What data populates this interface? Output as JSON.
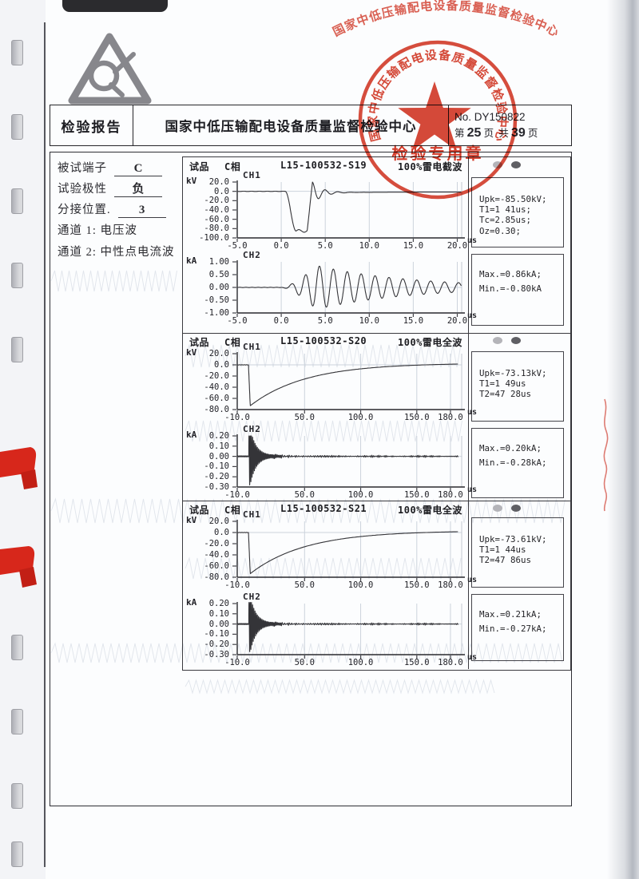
{
  "header": {
    "report_type": "检验报告",
    "center_title": "国家中低压输配电设备质量监督检验中心",
    "doc_no": "No. DY150822",
    "page_prefix": "第",
    "page_number": "25",
    "page_unit": "页",
    "total_prefix": "共",
    "total_number": "39",
    "total_unit": "页"
  },
  "stamp": {
    "ring_text": "国家中低压输配电设备质量监督检验中心",
    "label": "检验专用章",
    "color": "#d43a28"
  },
  "specimen": {
    "rows": [
      {
        "label": "被试端子",
        "value": "C"
      },
      {
        "label": "试验极性",
        "value": "负"
      },
      {
        "label": "分接位置.",
        "value": "3"
      }
    ],
    "channel1": "通道 1: 电压波",
    "channel2": "通道 2: 中性点电流波"
  },
  "records": [
    {
      "specimen_label": "试品",
      "phase": "C相",
      "code": "L15-100532-S19",
      "wave_label": "100%雷电截波",
      "result_panel_voltage": [
        "Upk=-85.50kV;",
        "T1=1 41us;",
        "Tc=2.85us;",
        "Oz=0.30;"
      ],
      "result_panel_current": [
        "Max.=0.86kA;",
        "Min.=-0.80kA"
      ]
    },
    {
      "specimen_label": "试品",
      "phase": "C相",
      "code": "L15-100532-S20",
      "wave_label": "100%雷电全波",
      "result_panel_voltage": [
        "Upk=-73.13kV;",
        "T1=1 49us",
        "T2=47 28us"
      ],
      "result_panel_current": [
        "Max.=0.20kA;",
        "Min.=-0.28kA;"
      ]
    },
    {
      "specimen_label": "试品",
      "phase": "C相",
      "code": "L15-100532-S21",
      "wave_label": "100%雷电全波",
      "result_panel_voltage": [
        "Upk=-73.61kV;",
        "T1=1 44us",
        "T2=47 86us"
      ],
      "result_panel_current": [
        "Max.=0.21kA;",
        "Min.=-0.27kA;"
      ]
    }
  ],
  "chart_data": [
    {
      "record": 1,
      "channel": "CH1",
      "unit": "kV",
      "x_unit": "us",
      "type": "line",
      "waveform": "chopped_lightning_impulse",
      "x_range": [
        -5,
        20.5
      ],
      "x_ticks": [
        [
          -5,
          "-5.0"
        ],
        [
          0,
          "0.0"
        ],
        [
          5,
          "5.0"
        ],
        [
          10,
          "10.0"
        ],
        [
          15,
          "15.0"
        ],
        [
          20,
          "20.0"
        ]
      ],
      "y_range": [
        -100,
        20
      ],
      "y_ticks": [
        [
          20,
          "20.0"
        ],
        [
          0,
          "0.0"
        ],
        [
          -20,
          "-20.0"
        ],
        [
          -40,
          "-40.0"
        ],
        [
          -60,
          "-60.0"
        ],
        [
          -80,
          "-80.0"
        ],
        [
          -100,
          "-100.0"
        ]
      ],
      "key_values": {
        "Upk_kV": -85.5,
        "T1_us": 1.41,
        "Tc_us": 2.85,
        "Oz": 0.3
      }
    },
    {
      "record": 1,
      "channel": "CH2",
      "unit": "kA",
      "x_unit": "us",
      "type": "line",
      "waveform": "damped_oscillation",
      "x_range": [
        -5,
        20.5
      ],
      "x_ticks": [
        [
          -5,
          "-5.0"
        ],
        [
          0,
          "0.0"
        ],
        [
          5,
          "5.0"
        ],
        [
          10,
          "10.0"
        ],
        [
          15,
          "15.0"
        ],
        [
          20,
          "20.0"
        ]
      ],
      "y_range": [
        -1,
        1
      ],
      "y_ticks": [
        [
          1,
          "1.00"
        ],
        [
          0.5,
          "0.50"
        ],
        [
          0,
          "0.00"
        ],
        [
          -0.5,
          "-0.50"
        ],
        [
          -1,
          "-1.00"
        ]
      ],
      "key_values": {
        "Max_kA": 0.86,
        "Min_kA": -0.8
      }
    },
    {
      "record": 2,
      "channel": "CH1",
      "unit": "kV",
      "x_unit": "us",
      "type": "line",
      "waveform": "full_lightning_impulse",
      "x_range": [
        -10,
        190
      ],
      "x_ticks": [
        [
          -10,
          "-10.0"
        ],
        [
          50,
          "50.0"
        ],
        [
          100,
          "100.0"
        ],
        [
          150,
          "150.0"
        ],
        [
          180,
          "180.0"
        ]
      ],
      "y_range": [
        -80,
        20
      ],
      "y_ticks": [
        [
          20,
          "20.0"
        ],
        [
          0,
          "0.0"
        ],
        [
          -20,
          "-20.0"
        ],
        [
          -40,
          "-40.0"
        ],
        [
          -60,
          "-60.0"
        ],
        [
          -80,
          "-80.0"
        ]
      ],
      "key_values": {
        "Upk_kV": -73.13,
        "T1_us": 1.49,
        "T2_us": 47.28
      }
    },
    {
      "record": 2,
      "channel": "CH2",
      "unit": "kA",
      "x_unit": "us",
      "type": "line",
      "waveform": "hf_damped_oscillation",
      "x_range": [
        -10,
        190
      ],
      "x_ticks": [
        [
          -10,
          "-10.0"
        ],
        [
          50,
          "50.0"
        ],
        [
          100,
          "100.0"
        ],
        [
          150,
          "150.0"
        ],
        [
          180,
          "180.0"
        ]
      ],
      "y_range": [
        -0.3,
        0.2
      ],
      "y_ticks": [
        [
          0.2,
          "0.20"
        ],
        [
          0.1,
          "0.10"
        ],
        [
          0,
          "0.00"
        ],
        [
          -0.1,
          "-0.10"
        ],
        [
          -0.2,
          "-0.20"
        ],
        [
          -0.3,
          "-0.30"
        ]
      ],
      "key_values": {
        "Max_kA": 0.2,
        "Min_kA": -0.28
      }
    },
    {
      "record": 3,
      "channel": "CH1",
      "unit": "kV",
      "x_unit": "us",
      "type": "line",
      "waveform": "full_lightning_impulse",
      "x_range": [
        -10,
        190
      ],
      "x_ticks": [
        [
          -10,
          "-10.0"
        ],
        [
          50,
          "50.0"
        ],
        [
          100,
          "100.0"
        ],
        [
          150,
          "150.0"
        ],
        [
          180,
          "180.0"
        ]
      ],
      "y_range": [
        -80,
        20
      ],
      "y_ticks": [
        [
          20,
          "20.0"
        ],
        [
          0,
          "0.0"
        ],
        [
          -20,
          "-20.0"
        ],
        [
          -40,
          "-40.0"
        ],
        [
          -60,
          "-60.0"
        ],
        [
          -80,
          "-80.0"
        ]
      ],
      "key_values": {
        "Upk_kV": -73.61,
        "T1_us": 1.44,
        "T2_us": 47.86
      }
    },
    {
      "record": 3,
      "channel": "CH2",
      "unit": "kA",
      "x_unit": "us",
      "type": "line",
      "waveform": "hf_damped_oscillation",
      "x_range": [
        -10,
        190
      ],
      "x_ticks": [
        [
          -10,
          "-10.0"
        ],
        [
          50,
          "50.0"
        ],
        [
          100,
          "100.0"
        ],
        [
          150,
          "150.0"
        ],
        [
          180,
          "180.0"
        ]
      ],
      "y_range": [
        -0.3,
        0.2
      ],
      "y_ticks": [
        [
          0.2,
          "0.20"
        ],
        [
          0.1,
          "0.10"
        ],
        [
          0,
          "0.00"
        ],
        [
          -0.1,
          "-0.10"
        ],
        [
          -0.2,
          "-0.20"
        ],
        [
          -0.3,
          "-0.30"
        ]
      ],
      "key_values": {
        "Max_kA": 0.21,
        "Min_kA": -0.27
      }
    }
  ]
}
